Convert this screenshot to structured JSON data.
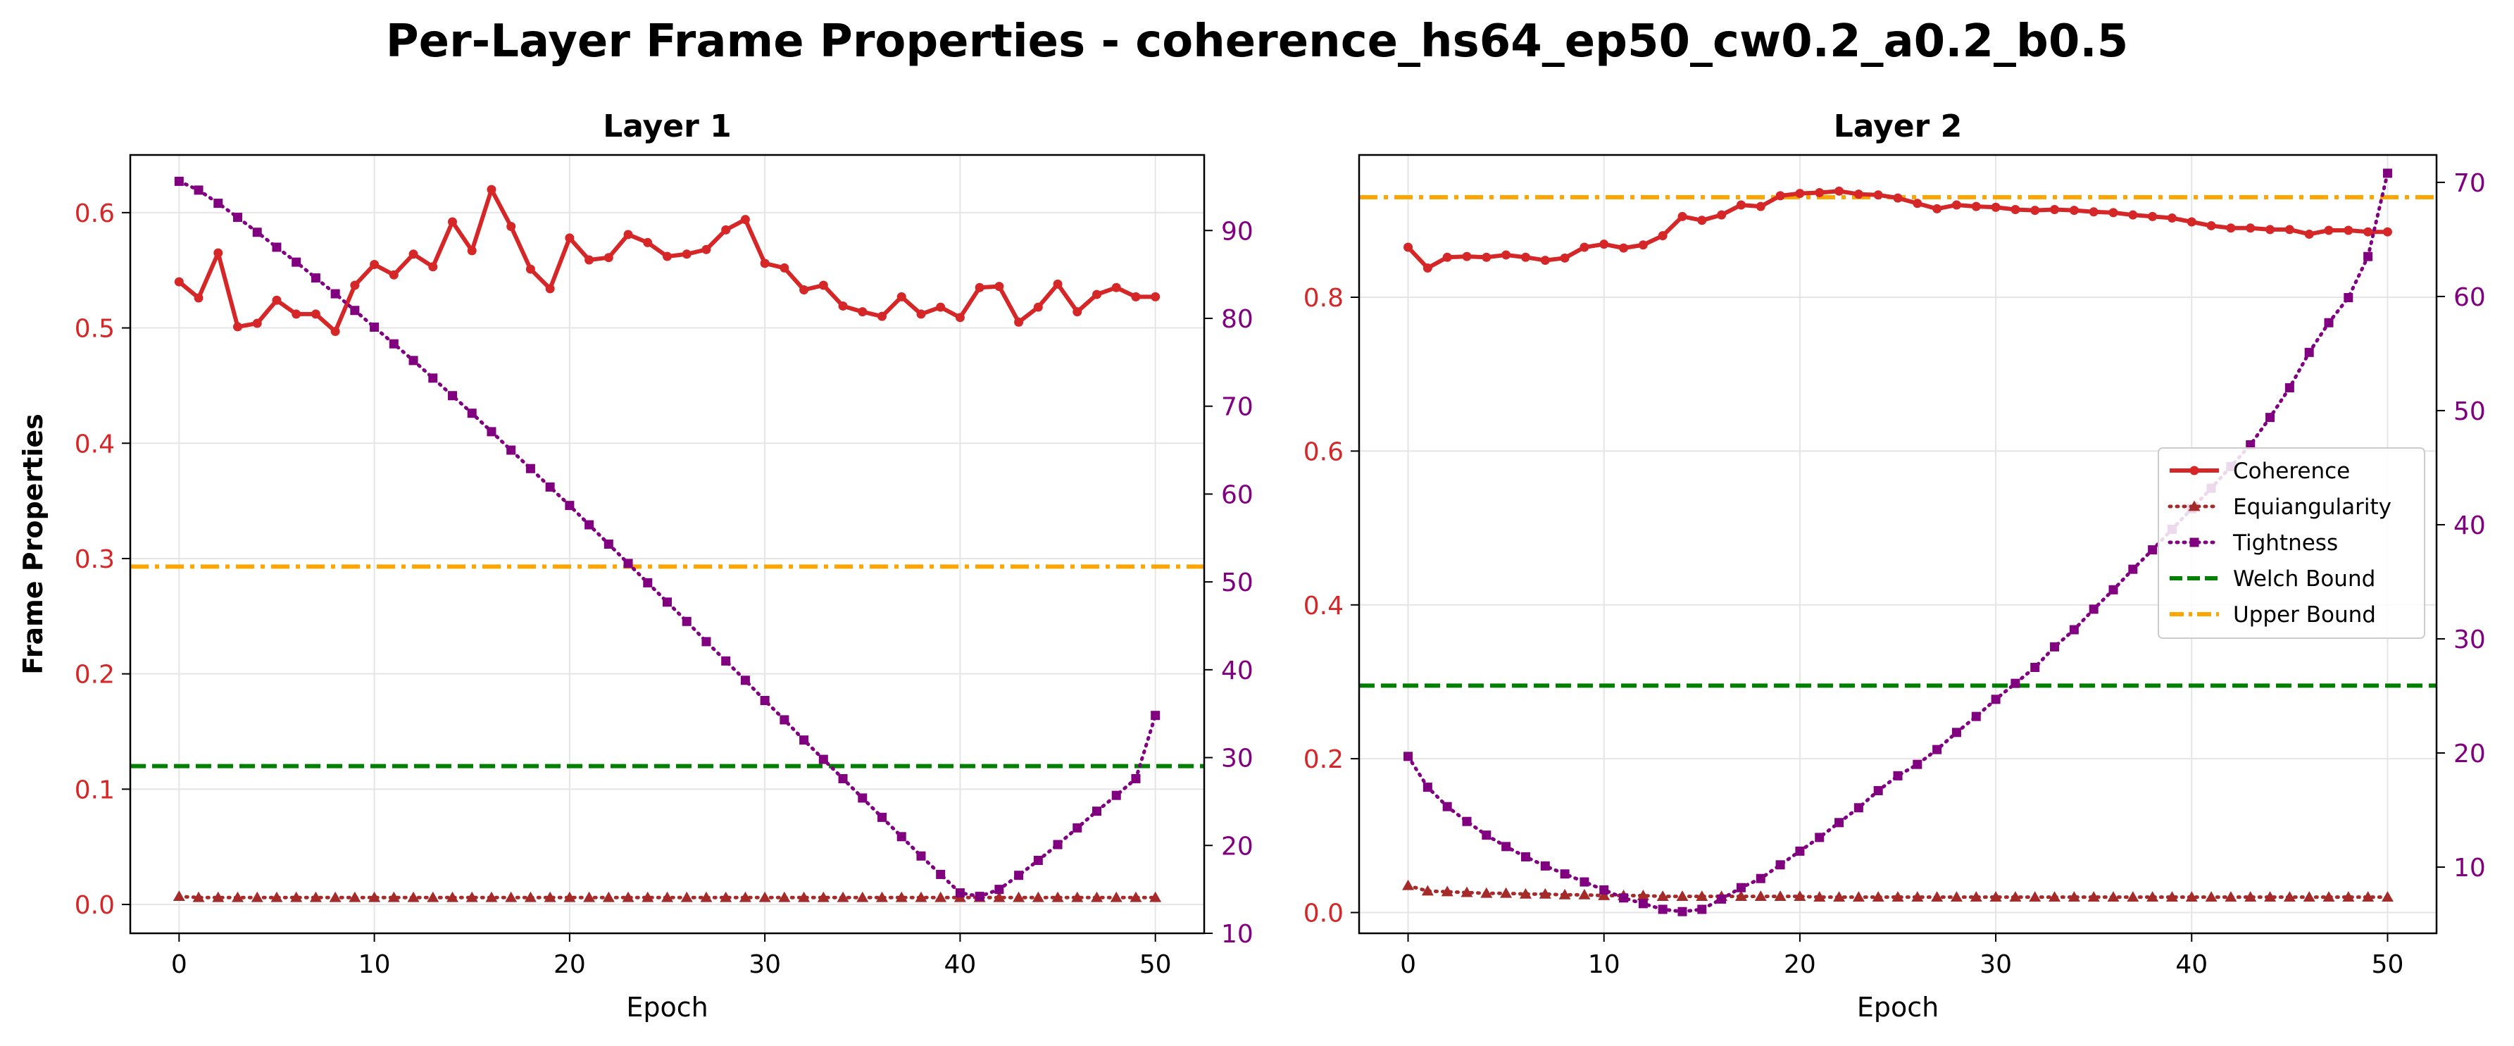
{
  "figure": {
    "title": "Per-Layer Frame Properties - coherence_hs64_ep50_cw0.2_a0.2_b0.5"
  },
  "colors": {
    "coherence": "#d62728",
    "equiangularity": "#a52a2a",
    "tightness": "#800080",
    "welch": "#008000",
    "upper": "#ffa500",
    "left_axis_ticks": "#d62728",
    "right_axis_ticks": "#800080",
    "grid": "#e5e5e5"
  },
  "legend": {
    "placement": "center-right of Layer 2",
    "entries": [
      "Coherence",
      "Equiangularity",
      "Tightness",
      "Welch Bound",
      "Upper Bound"
    ]
  },
  "chart_data": [
    {
      "type": "line",
      "title": "Layer 1",
      "xlabel": "Epoch",
      "ylabel": "Frame Properties",
      "xlim": [
        -2.5,
        52.5
      ],
      "ylim": [
        -0.025,
        0.65
      ],
      "y2lim": [
        10,
        98.6
      ],
      "xticks": [
        0,
        10,
        20,
        30,
        40,
        50
      ],
      "yticks": [
        0.0,
        0.1,
        0.2,
        0.3,
        0.4,
        0.5,
        0.6
      ],
      "ytick_labels": [
        "0.0",
        "0.1",
        "0.2",
        "0.3",
        "0.4",
        "0.5",
        "0.6"
      ],
      "y2ticks": [
        10,
        20,
        30,
        40,
        50,
        60,
        70,
        80,
        90
      ],
      "grid": true,
      "legend": false,
      "series": [
        {
          "name": "Coherence",
          "axis": "left",
          "style": "solid-circle",
          "values": [
            0.54,
            0.526,
            0.565,
            0.501,
            0.504,
            0.524,
            0.512,
            0.512,
            0.497,
            0.537,
            0.555,
            0.546,
            0.564,
            0.553,
            0.592,
            0.567,
            0.62,
            0.588,
            0.551,
            0.534,
            0.578,
            0.559,
            0.561,
            0.581,
            0.574,
            0.562,
            0.564,
            0.568,
            0.585,
            0.594,
            0.556,
            0.552,
            0.533,
            0.537,
            0.519,
            0.514,
            0.51,
            0.527,
            0.512,
            0.518,
            0.509,
            0.535,
            0.536,
            0.505,
            0.518,
            0.538,
            0.514,
            0.529,
            0.535,
            0.527,
            0.527
          ]
        },
        {
          "name": "Equiangularity",
          "axis": "left",
          "style": "dotted-triangle",
          "values": [
            0.007,
            0.006,
            0.006,
            0.006,
            0.006,
            0.006,
            0.006,
            0.006,
            0.006,
            0.006,
            0.006,
            0.006,
            0.006,
            0.006,
            0.006,
            0.006,
            0.006,
            0.006,
            0.006,
            0.006,
            0.006,
            0.006,
            0.006,
            0.006,
            0.006,
            0.006,
            0.006,
            0.006,
            0.006,
            0.006,
            0.006,
            0.006,
            0.006,
            0.006,
            0.006,
            0.006,
            0.006,
            0.006,
            0.006,
            0.006,
            0.006,
            0.006,
            0.006,
            0.006,
            0.006,
            0.006,
            0.006,
            0.006,
            0.006,
            0.006,
            0.006
          ]
        },
        {
          "name": "Tightness",
          "axis": "right",
          "style": "dotted-square",
          "values": [
            95.6,
            94.6,
            93.1,
            91.5,
            89.8,
            88.1,
            86.4,
            84.6,
            82.8,
            80.9,
            79.0,
            77.1,
            75.2,
            73.2,
            71.2,
            69.2,
            67.1,
            65.0,
            62.9,
            60.8,
            58.7,
            56.5,
            54.3,
            52.1,
            49.9,
            47.7,
            45.5,
            43.2,
            41.0,
            38.8,
            36.5,
            34.3,
            32.0,
            29.8,
            27.6,
            25.4,
            23.2,
            21.0,
            18.8,
            16.7,
            14.6,
            14.2,
            15.0,
            16.6,
            18.3,
            20.1,
            22.0,
            23.9,
            25.7,
            27.6,
            34.8
          ]
        },
        {
          "name": "Welch Bound",
          "axis": "left",
          "style": "dashed-hline",
          "values": [
            0.12
          ]
        },
        {
          "name": "Upper Bound",
          "axis": "left",
          "style": "dashdot-hline",
          "values": [
            0.293
          ]
        }
      ]
    },
    {
      "type": "line",
      "title": "Layer 2",
      "xlabel": "Epoch",
      "ylabel": "",
      "xlim": [
        -2.5,
        52.5
      ],
      "ylim": [
        -0.027,
        0.985
      ],
      "y2lim": [
        4.2,
        72.4
      ],
      "xticks": [
        0,
        10,
        20,
        30,
        40,
        50
      ],
      "yticks": [
        0.0,
        0.2,
        0.4,
        0.6,
        0.8
      ],
      "ytick_labels": [
        "0.0",
        "0.2",
        "0.4",
        "0.6",
        "0.8"
      ],
      "y2ticks": [
        10,
        20,
        30,
        40,
        50,
        60,
        70
      ],
      "grid": true,
      "legend": true,
      "series": [
        {
          "name": "Coherence",
          "axis": "left",
          "style": "solid-circle",
          "values": [
            0.865,
            0.838,
            0.852,
            0.853,
            0.852,
            0.855,
            0.852,
            0.848,
            0.851,
            0.865,
            0.869,
            0.864,
            0.868,
            0.88,
            0.905,
            0.9,
            0.907,
            0.92,
            0.918,
            0.932,
            0.935,
            0.936,
            0.938,
            0.934,
            0.933,
            0.929,
            0.922,
            0.915,
            0.92,
            0.918,
            0.917,
            0.914,
            0.913,
            0.914,
            0.913,
            0.911,
            0.91,
            0.907,
            0.905,
            0.903,
            0.898,
            0.893,
            0.89,
            0.89,
            0.888,
            0.888,
            0.882,
            0.887,
            0.887,
            0.885,
            0.885
          ]
        },
        {
          "name": "Equiangularity",
          "axis": "left",
          "style": "dotted-triangle",
          "values": [
            0.035,
            0.028,
            0.027,
            0.026,
            0.025,
            0.025,
            0.024,
            0.024,
            0.023,
            0.023,
            0.022,
            0.022,
            0.022,
            0.021,
            0.021,
            0.021,
            0.021,
            0.021,
            0.021,
            0.021,
            0.021,
            0.02,
            0.02,
            0.02,
            0.02,
            0.02,
            0.02,
            0.02,
            0.02,
            0.02,
            0.02,
            0.02,
            0.02,
            0.02,
            0.02,
            0.02,
            0.02,
            0.02,
            0.02,
            0.02,
            0.02,
            0.02,
            0.02,
            0.02,
            0.02,
            0.02,
            0.02,
            0.02,
            0.02,
            0.02,
            0.02
          ]
        },
        {
          "name": "Tightness",
          "axis": "right",
          "style": "dotted-square",
          "values": [
            19.7,
            17.0,
            15.3,
            14.0,
            12.8,
            11.8,
            10.9,
            10.1,
            9.4,
            8.7,
            8.0,
            7.3,
            6.8,
            6.3,
            6.1,
            6.3,
            7.2,
            8.2,
            9.0,
            10.2,
            11.4,
            12.6,
            13.9,
            15.2,
            16.7,
            18.0,
            19.0,
            20.3,
            21.8,
            23.2,
            24.7,
            26.1,
            27.5,
            29.3,
            30.8,
            32.6,
            34.3,
            36.1,
            37.8,
            39.6,
            41.4,
            43.2,
            45.1,
            47.0,
            49.4,
            52.0,
            55.1,
            57.7,
            59.9,
            63.5,
            70.8
          ]
        },
        {
          "name": "Welch Bound",
          "axis": "left",
          "style": "dashed-hline",
          "values": [
            0.295
          ]
        },
        {
          "name": "Upper Bound",
          "axis": "left",
          "style": "dashdot-hline",
          "values": [
            0.93
          ]
        }
      ]
    }
  ]
}
